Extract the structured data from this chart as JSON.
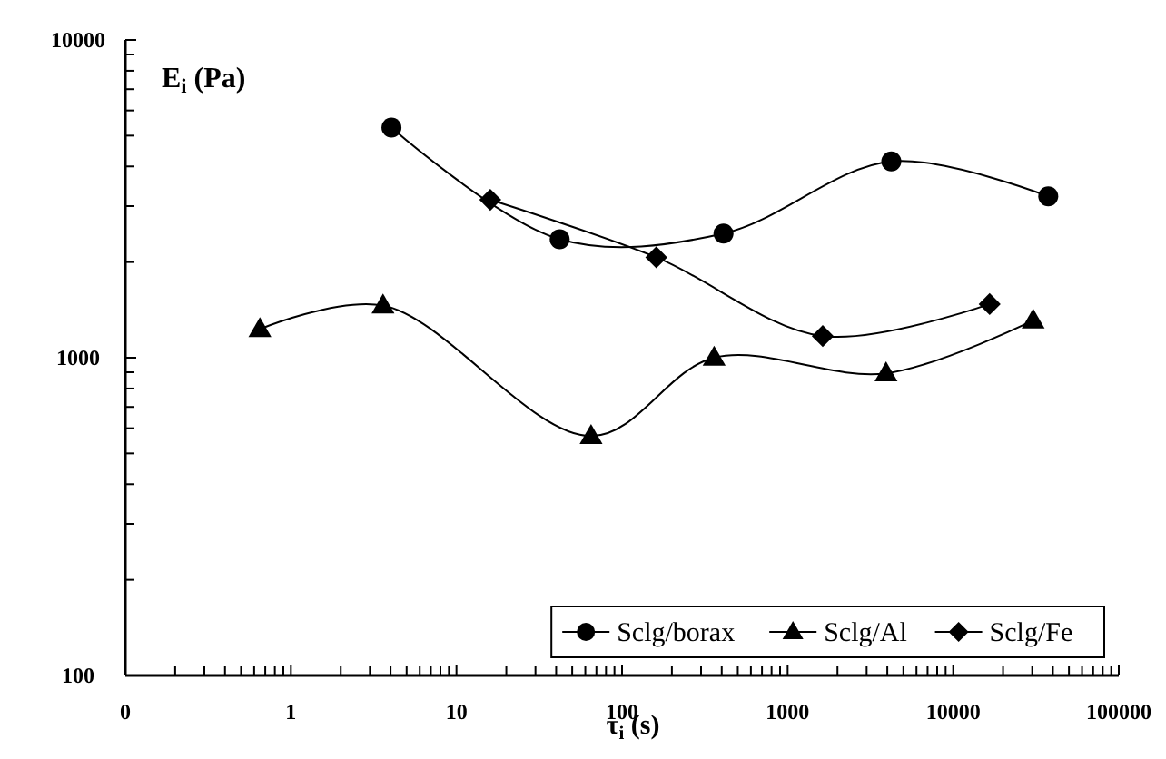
{
  "chart_data": {
    "type": "line",
    "xlabel": "τ$_{i}$ (s)",
    "ylabel": "E$_{i}$ (Pa)",
    "log": "xy",
    "xlim": [
      0.1,
      100000
    ],
    "ylim": [
      100,
      10000
    ],
    "xticks": [
      {
        "value": 0.1,
        "label": "0"
      },
      {
        "value": 0.2,
        "label": null
      },
      {
        "value": 0.3,
        "label": null
      },
      {
        "value": 0.4,
        "label": null
      },
      {
        "value": 0.5,
        "label": null
      },
      {
        "value": 0.6,
        "label": null
      },
      {
        "value": 0.7,
        "label": null
      },
      {
        "value": 0.8,
        "label": null
      },
      {
        "value": 0.9,
        "label": null
      },
      1,
      {
        "value": 2,
        "label": null
      },
      {
        "value": 3,
        "label": null
      },
      {
        "value": 4,
        "label": null
      },
      {
        "value": 5,
        "label": null
      },
      {
        "value": 6,
        "label": null
      },
      {
        "value": 7,
        "label": null
      },
      {
        "value": 8,
        "label": null
      },
      {
        "value": 9,
        "label": null
      },
      10,
      {
        "value": 20,
        "label": null
      },
      {
        "value": 30,
        "label": null
      },
      {
        "value": 40,
        "label": null
      },
      {
        "value": 50,
        "label": null
      },
      {
        "value": 60,
        "label": null
      },
      {
        "value": 70,
        "label": null
      },
      {
        "value": 80,
        "label": null
      },
      {
        "value": 90,
        "label": null
      },
      100,
      {
        "value": 200,
        "label": null
      },
      {
        "value": 300,
        "label": null
      },
      {
        "value": 400,
        "label": null
      },
      {
        "value": 500,
        "label": null
      },
      {
        "value": 600,
        "label": null
      },
      {
        "value": 700,
        "label": null
      },
      {
        "value": 800,
        "label": null
      },
      {
        "value": 900,
        "label": null
      },
      1000,
      {
        "value": 2000,
        "label": null
      },
      {
        "value": 3000,
        "label": null
      },
      {
        "value": 4000,
        "label": null
      },
      {
        "value": 5000,
        "label": null
      },
      {
        "value": 6000,
        "label": null
      },
      {
        "value": 7000,
        "label": null
      },
      {
        "value": 8000,
        "label": null
      },
      {
        "value": 9000,
        "label": null
      },
      10000,
      {
        "value": 20000,
        "label": null
      },
      {
        "value": 30000,
        "label": null
      },
      {
        "value": 40000,
        "label": null
      },
      {
        "value": 50000,
        "label": null
      },
      {
        "value": 60000,
        "label": null
      },
      {
        "value": 70000,
        "label": null
      },
      {
        "value": 80000,
        "label": null
      },
      {
        "value": 90000,
        "label": null
      },
      100000
    ],
    "yticks": [
      100,
      {
        "value": 200,
        "label": null
      },
      {
        "value": 300,
        "label": null
      },
      {
        "value": 400,
        "label": null
      },
      {
        "value": 500,
        "label": null
      },
      {
        "value": 600,
        "label": null
      },
      {
        "value": 700,
        "label": null
      },
      {
        "value": 800,
        "label": null
      },
      {
        "value": 900,
        "label": null
      },
      1000,
      {
        "value": 2000,
        "label": null
      },
      {
        "value": 3000,
        "label": null
      },
      {
        "value": 4000,
        "label": null
      },
      {
        "value": 5000,
        "label": null
      },
      {
        "value": 6000,
        "label": null
      },
      {
        "value": 7000,
        "label": null
      },
      {
        "value": 8000,
        "label": null
      },
      {
        "value": 9000,
        "label": null
      },
      10000
    ],
    "grid": false,
    "legend": "bottom right",
    "line_style": "solid",
    "series": [
      {
        "name": "Sclg/borax",
        "color": "#000000",
        "marker": "circle",
        "x": [
          4.05,
          42,
          410,
          4230,
          37500
        ],
        "values": [
          5300,
          2360,
          2460,
          4150,
          3220
        ]
      },
      {
        "name": "Sclg/Al",
        "color": "#000000",
        "marker": "triangle",
        "x": [
          0.65,
          3.6,
          65,
          360,
          3930,
          30400
        ],
        "values": [
          1230,
          1460,
          567,
          1000,
          893,
          1310
        ]
      },
      {
        "name": "Sclg/Fe",
        "color": "#000000",
        "marker": "diamond",
        "x": [
          16,
          161,
          1630,
          16600
        ],
        "values": [
          3140,
          2070,
          1170,
          1475
        ]
      }
    ]
  }
}
